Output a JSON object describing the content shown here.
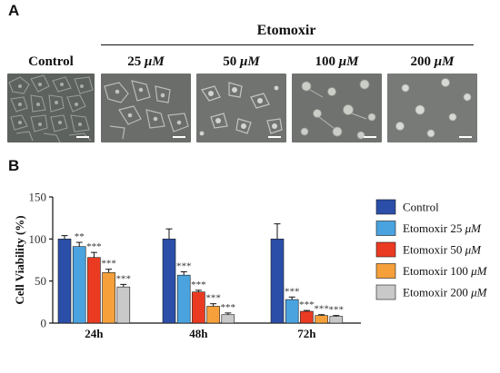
{
  "panel_a": {
    "letter": "A",
    "treatment": "Etomoxir",
    "images": [
      {
        "label": "Control",
        "unit": ""
      },
      {
        "label": "25 ",
        "unit": "μM"
      },
      {
        "label": "50 ",
        "unit": "μM"
      },
      {
        "label": "100 ",
        "unit": "μM"
      },
      {
        "label": "200 ",
        "unit": "μM"
      }
    ]
  },
  "panel_b": {
    "letter": "B"
  },
  "chart_data": {
    "type": "bar",
    "ylabel": "Cell Viability (%)",
    "xlabel": "",
    "ylim": [
      0,
      150
    ],
    "yticks": [
      "0",
      "50",
      "100",
      "150"
    ],
    "categories": [
      "24h",
      "48h",
      "72h"
    ],
    "legend_position": "right",
    "series": [
      {
        "name": "Control",
        "color": "#2b4ea8",
        "values": [
          100,
          100,
          100
        ],
        "errors": [
          4,
          12,
          18
        ],
        "sig": [
          "",
          "",
          ""
        ]
      },
      {
        "name": "Etomoxir 25 μM",
        "color": "#4aa3df",
        "values": [
          91,
          57,
          28
        ],
        "errors": [
          5,
          4,
          3
        ],
        "sig": [
          "**",
          "***",
          "***"
        ]
      },
      {
        "name": "Etomoxir 50 μM",
        "color": "#ea3b22",
        "values": [
          78,
          37,
          14
        ],
        "errors": [
          6,
          2,
          1
        ],
        "sig": [
          "***",
          "***",
          "***"
        ]
      },
      {
        "name": "Etomoxir 100 μM",
        "color": "#f5a03a",
        "values": [
          60,
          20,
          9
        ],
        "errors": [
          4,
          3,
          1
        ],
        "sig": [
          "***",
          "***",
          "***"
        ]
      },
      {
        "name": "Etomoxir 200 μM",
        "color": "#c9c9c9",
        "values": [
          43,
          10,
          8
        ],
        "errors": [
          3,
          2,
          1
        ],
        "sig": [
          "***",
          "***",
          "***"
        ]
      }
    ]
  }
}
